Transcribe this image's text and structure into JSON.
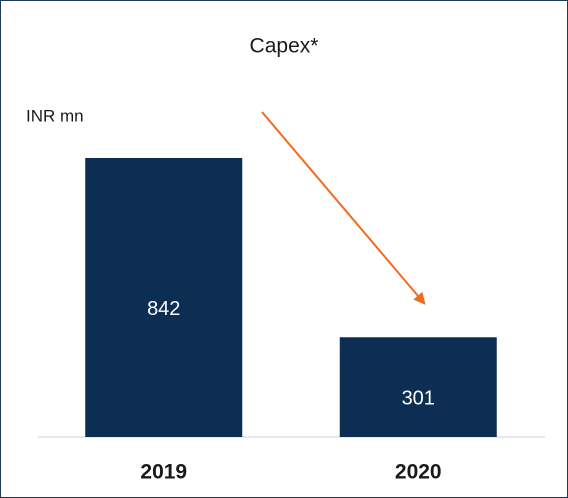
{
  "chart_data": {
    "type": "bar",
    "title": "Capex*",
    "subtitle": "INR mn",
    "categories": [
      "2019",
      "2020"
    ],
    "values": [
      842,
      301
    ],
    "color": "#0b2e52"
  }
}
